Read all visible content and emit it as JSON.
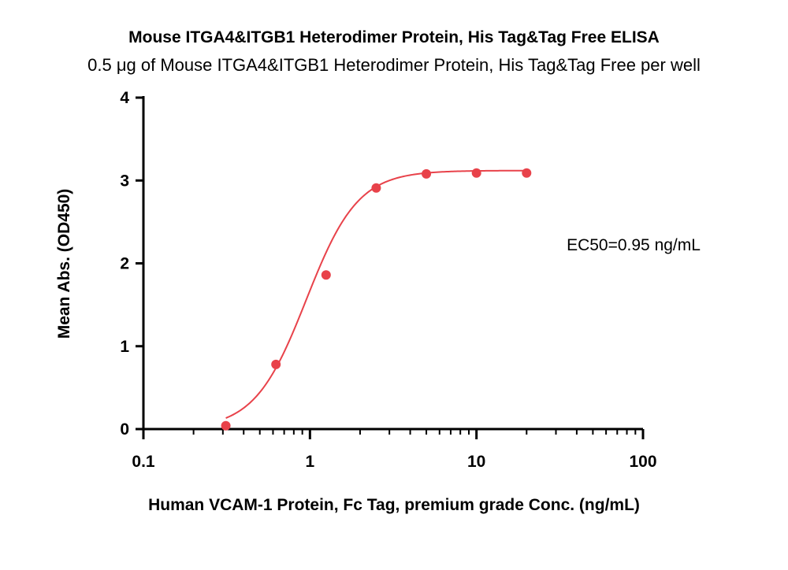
{
  "chart_data": {
    "type": "scatter",
    "title": "Mouse ITGA4&ITGB1 Heterodimer Protein, His Tag&Tag Free ELISA",
    "subtitle": "0.5 μg of Mouse ITGA4&ITGB1 Heterodimer Protein, His Tag&Tag Free per well",
    "xlabel": "Human VCAM-1 Protein, Fc Tag, premium grade Conc. (ng/mL)",
    "ylabel": "Mean Abs. (OD450)",
    "xscale": "log",
    "xlim": [
      0.1,
      100
    ],
    "ylim": [
      0,
      4
    ],
    "xticks": [
      0.1,
      1,
      10,
      100
    ],
    "xtick_labels": [
      "0.1",
      "1",
      "10",
      "100"
    ],
    "yticks": [
      0,
      1,
      2,
      3,
      4
    ],
    "ytick_labels": [
      "0",
      "1",
      "2",
      "3",
      "4"
    ],
    "grid": false,
    "series": [
      {
        "color": "#e8424a",
        "x": [
          0.3125,
          0.625,
          1.25,
          2.5,
          5,
          10,
          20
        ],
        "y": [
          0.04,
          0.78,
          1.86,
          2.91,
          3.08,
          3.09,
          3.09
        ]
      }
    ],
    "fit": {
      "type": "4PL",
      "bottom": 0.0,
      "top": 3.12,
      "ec50": 0.95,
      "hill": 2.8,
      "color": "#e8424a"
    },
    "annotation": "EC50=0.95 ng/mL"
  }
}
